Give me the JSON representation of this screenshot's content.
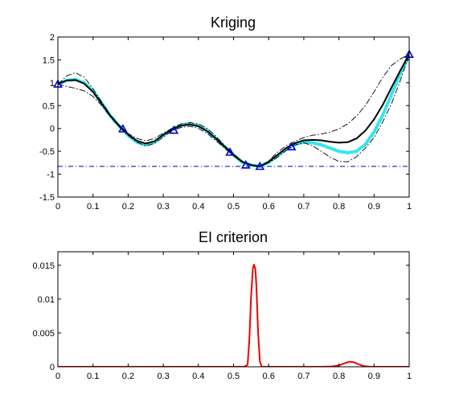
{
  "chart_data": [
    {
      "type": "line",
      "title": "Kriging",
      "xlabel": "",
      "ylabel": "",
      "xlim": [
        0,
        1
      ],
      "ylim": [
        -1.5,
        2
      ],
      "x_ticks": [
        "0",
        "0.1",
        "0.2",
        "0.3",
        "0.4",
        "0.5",
        "0.6",
        "0.7",
        "0.8",
        "0.9",
        "1"
      ],
      "y_ticks": [
        "-1.5",
        "-1",
        "-0.5",
        "0",
        "0.5",
        "1",
        "1.5",
        "2"
      ],
      "grid": false,
      "observations": {
        "marker": "triangle",
        "color": "#0000cc",
        "x": [
          0.0,
          0.185,
          0.33,
          0.49,
          0.535,
          0.575,
          0.665,
          1.0
        ],
        "y": [
          0.97,
          -0.01,
          -0.04,
          -0.52,
          -0.8,
          -0.83,
          -0.4,
          1.62
        ]
      },
      "threshold": {
        "y": -0.83,
        "color": "#0000aa",
        "style": "dash-dot"
      },
      "series": [
        {
          "role": "true-function",
          "color": "#33e6f0",
          "style": "thick",
          "x": [
            0,
            0.025,
            0.05,
            0.075,
            0.1,
            0.125,
            0.15,
            0.175,
            0.2,
            0.225,
            0.25,
            0.275,
            0.3,
            0.325,
            0.35,
            0.375,
            0.4,
            0.425,
            0.45,
            0.475,
            0.5,
            0.525,
            0.55,
            0.575,
            0.6,
            0.625,
            0.65,
            0.675,
            0.7,
            0.725,
            0.75,
            0.775,
            0.8,
            0.825,
            0.85,
            0.875,
            0.9,
            0.925,
            0.95,
            0.975,
            1
          ],
          "y": [
            0.97,
            1.05,
            1.07,
            1.0,
            0.82,
            0.55,
            0.27,
            0.05,
            -0.15,
            -0.3,
            -0.36,
            -0.3,
            -0.15,
            -0.02,
            0.07,
            0.1,
            0.06,
            -0.05,
            -0.22,
            -0.4,
            -0.58,
            -0.74,
            -0.8,
            -0.83,
            -0.74,
            -0.6,
            -0.45,
            -0.35,
            -0.3,
            -0.31,
            -0.36,
            -0.43,
            -0.5,
            -0.53,
            -0.5,
            -0.35,
            -0.08,
            0.3,
            0.75,
            1.2,
            1.62
          ]
        },
        {
          "role": "kriging-mean",
          "color": "#000000",
          "style": "solid",
          "x": [
            0,
            0.025,
            0.05,
            0.075,
            0.1,
            0.125,
            0.15,
            0.175,
            0.2,
            0.225,
            0.25,
            0.275,
            0.3,
            0.325,
            0.35,
            0.375,
            0.4,
            0.425,
            0.45,
            0.475,
            0.5,
            0.525,
            0.55,
            0.575,
            0.6,
            0.625,
            0.65,
            0.675,
            0.7,
            0.725,
            0.75,
            0.775,
            0.8,
            0.825,
            0.85,
            0.875,
            0.9,
            0.925,
            0.95,
            0.975,
            1
          ],
          "y": [
            0.97,
            1.05,
            1.06,
            0.98,
            0.8,
            0.54,
            0.27,
            0.05,
            -0.13,
            -0.27,
            -0.33,
            -0.28,
            -0.14,
            -0.02,
            0.06,
            0.09,
            0.05,
            -0.06,
            -0.22,
            -0.4,
            -0.58,
            -0.73,
            -0.8,
            -0.83,
            -0.73,
            -0.58,
            -0.43,
            -0.32,
            -0.26,
            -0.25,
            -0.26,
            -0.29,
            -0.31,
            -0.3,
            -0.22,
            -0.05,
            0.2,
            0.52,
            0.9,
            1.27,
            1.62
          ]
        },
        {
          "role": "upper-bound",
          "color": "#000000",
          "style": "dash-dot",
          "x": [
            0,
            0.025,
            0.05,
            0.075,
            0.1,
            0.125,
            0.15,
            0.175,
            0.2,
            0.225,
            0.25,
            0.275,
            0.3,
            0.325,
            0.35,
            0.375,
            0.4,
            0.425,
            0.45,
            0.475,
            0.5,
            0.525,
            0.55,
            0.575,
            0.6,
            0.625,
            0.65,
            0.675,
            0.7,
            0.725,
            0.75,
            0.775,
            0.8,
            0.825,
            0.85,
            0.875,
            0.9,
            0.925,
            0.95,
            0.975,
            1
          ],
          "y": [
            0.97,
            1.15,
            1.22,
            1.12,
            0.87,
            0.57,
            0.29,
            0.07,
            -0.11,
            -0.22,
            -0.27,
            -0.22,
            -0.1,
            0.0,
            0.1,
            0.13,
            0.1,
            0.0,
            -0.17,
            -0.38,
            -0.56,
            -0.72,
            -0.8,
            -0.83,
            -0.71,
            -0.52,
            -0.38,
            -0.28,
            -0.2,
            -0.15,
            -0.12,
            -0.08,
            -0.01,
            0.1,
            0.27,
            0.5,
            0.8,
            1.12,
            1.38,
            1.52,
            1.62
          ]
        },
        {
          "role": "lower-bound",
          "color": "#000000",
          "style": "dash-dot",
          "x": [
            0,
            0.025,
            0.05,
            0.075,
            0.1,
            0.125,
            0.15,
            0.175,
            0.2,
            0.225,
            0.25,
            0.275,
            0.3,
            0.325,
            0.35,
            0.375,
            0.4,
            0.425,
            0.45,
            0.475,
            0.5,
            0.525,
            0.55,
            0.575,
            0.6,
            0.625,
            0.65,
            0.675,
            0.7,
            0.725,
            0.75,
            0.775,
            0.8,
            0.825,
            0.85,
            0.875,
            0.9,
            0.925,
            0.95,
            0.975,
            1
          ],
          "y": [
            0.97,
            0.92,
            0.88,
            0.82,
            0.7,
            0.5,
            0.25,
            0.03,
            -0.15,
            -0.3,
            -0.38,
            -0.33,
            -0.19,
            -0.05,
            0.02,
            0.05,
            0.0,
            -0.11,
            -0.27,
            -0.43,
            -0.6,
            -0.74,
            -0.8,
            -0.83,
            -0.75,
            -0.63,
            -0.48,
            -0.36,
            -0.31,
            -0.38,
            -0.5,
            -0.63,
            -0.72,
            -0.73,
            -0.62,
            -0.43,
            -0.2,
            0.15,
            0.55,
            1.05,
            1.62
          ]
        }
      ]
    },
    {
      "type": "line",
      "title": "EI criterion",
      "xlabel": "",
      "ylabel": "",
      "xlim": [
        0,
        1
      ],
      "ylim": [
        0,
        0.017
      ],
      "x_ticks": [
        "0",
        "0.1",
        "0.2",
        "0.3",
        "0.4",
        "0.5",
        "0.6",
        "0.7",
        "0.8",
        "0.9",
        "1"
      ],
      "y_ticks": [
        "0",
        "0.005",
        "0.01",
        "0.015"
      ],
      "y_tick_values": [
        0,
        0.005,
        0.01,
        0.015
      ],
      "grid": false,
      "series": [
        {
          "role": "ei",
          "color": "#ee0000",
          "x": [
            0,
            0.5,
            0.53,
            0.54,
            0.545,
            0.55,
            0.555,
            0.558,
            0.562,
            0.565,
            0.57,
            0.575,
            0.58,
            0.6,
            0.75,
            0.78,
            0.8,
            0.815,
            0.83,
            0.84,
            0.855,
            0.87,
            0.89,
            0.92,
            1
          ],
          "y": [
            0,
            0,
            0,
            0.0003,
            0.004,
            0.0105,
            0.0145,
            0.0151,
            0.0145,
            0.012,
            0.005,
            0.0008,
            0,
            0,
            0,
            5e-05,
            0.0002,
            0.0005,
            0.00075,
            0.0007,
            0.0004,
            0.0001,
            0,
            0,
            0
          ]
        }
      ]
    }
  ]
}
